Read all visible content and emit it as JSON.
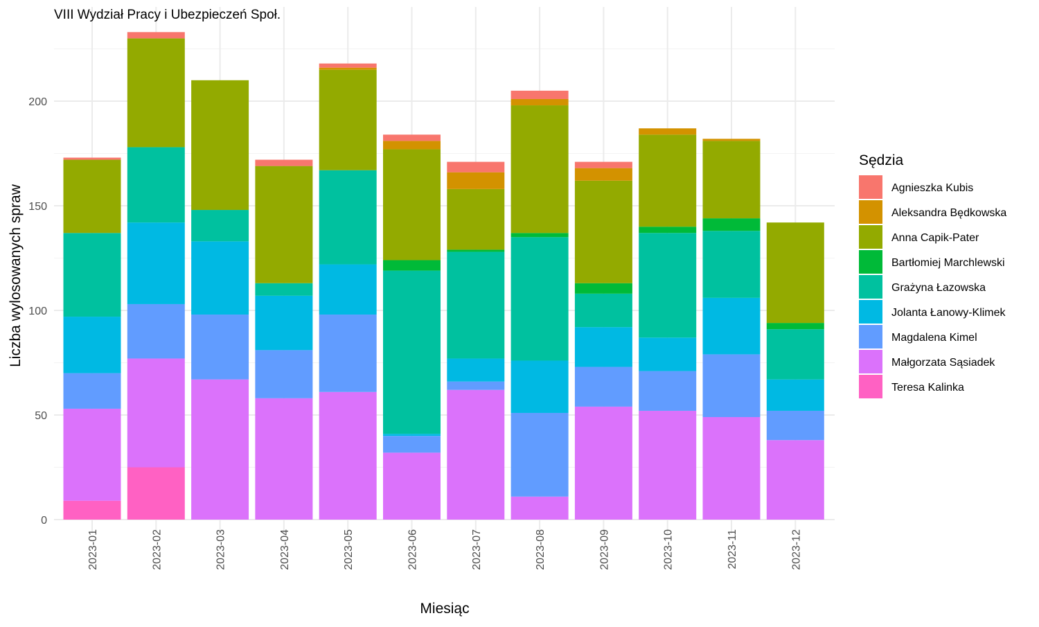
{
  "chart_data": {
    "type": "bar",
    "stacked": true,
    "title": "VIII Wydział Pracy i Ubezpieczeń Społ.",
    "xlabel": "Miesiąc",
    "ylabel": "Liczba wylosowanych spraw",
    "ylim": [
      0,
      240
    ],
    "yticks": [
      0,
      50,
      100,
      150,
      200
    ],
    "grid": true,
    "legend_title": "Sędzia",
    "legend_position": "right",
    "categories": [
      "2023-01",
      "2023-02",
      "2023-03",
      "2023-04",
      "2023-05",
      "2023-06",
      "2023-07",
      "2023-08",
      "2023-09",
      "2023-10",
      "2023-11",
      "2023-12"
    ],
    "series": [
      {
        "name": "Agnieszka Kubis",
        "color": "#F8766D",
        "values": [
          1,
          3,
          0,
          3,
          2,
          3,
          5,
          4,
          3,
          0,
          0,
          0
        ]
      },
      {
        "name": "Aleksandra Będkowska",
        "color": "#D39200",
        "values": [
          0,
          0,
          0,
          0,
          1,
          4,
          8,
          3,
          6,
          3,
          1,
          0
        ]
      },
      {
        "name": "Anna Capik-Pater",
        "color": "#93AA00",
        "values": [
          35,
          52,
          62,
          56,
          48,
          53,
          29,
          61,
          49,
          44,
          37,
          48
        ]
      },
      {
        "name": "Bartłomiej Marchlewski",
        "color": "#00BA38",
        "values": [
          0,
          0,
          0,
          0,
          0,
          5,
          1,
          2,
          5,
          3,
          6,
          3
        ]
      },
      {
        "name": "Grażyna Łazowska",
        "color": "#00C19F",
        "values": [
          40,
          36,
          15,
          6,
          45,
          78,
          51,
          59,
          16,
          50,
          32,
          24
        ]
      },
      {
        "name": "Jolanta Łanowy-Klimek",
        "color": "#00B9E3",
        "values": [
          27,
          39,
          35,
          26,
          24,
          1,
          11,
          25,
          19,
          16,
          27,
          15
        ]
      },
      {
        "name": "Magdalena Kimel",
        "color": "#619CFF",
        "values": [
          17,
          26,
          31,
          23,
          37,
          8,
          4,
          40,
          19,
          19,
          30,
          14
        ]
      },
      {
        "name": "Małgorzata Sąsiadek",
        "color": "#DB72FB",
        "values": [
          44,
          52,
          67,
          58,
          61,
          32,
          62,
          11,
          54,
          52,
          49,
          38
        ]
      },
      {
        "name": "Teresa Kalinka",
        "color": "#FF61C3",
        "values": [
          9,
          25,
          0,
          0,
          0,
          0,
          0,
          0,
          0,
          0,
          0,
          0
        ]
      }
    ]
  }
}
